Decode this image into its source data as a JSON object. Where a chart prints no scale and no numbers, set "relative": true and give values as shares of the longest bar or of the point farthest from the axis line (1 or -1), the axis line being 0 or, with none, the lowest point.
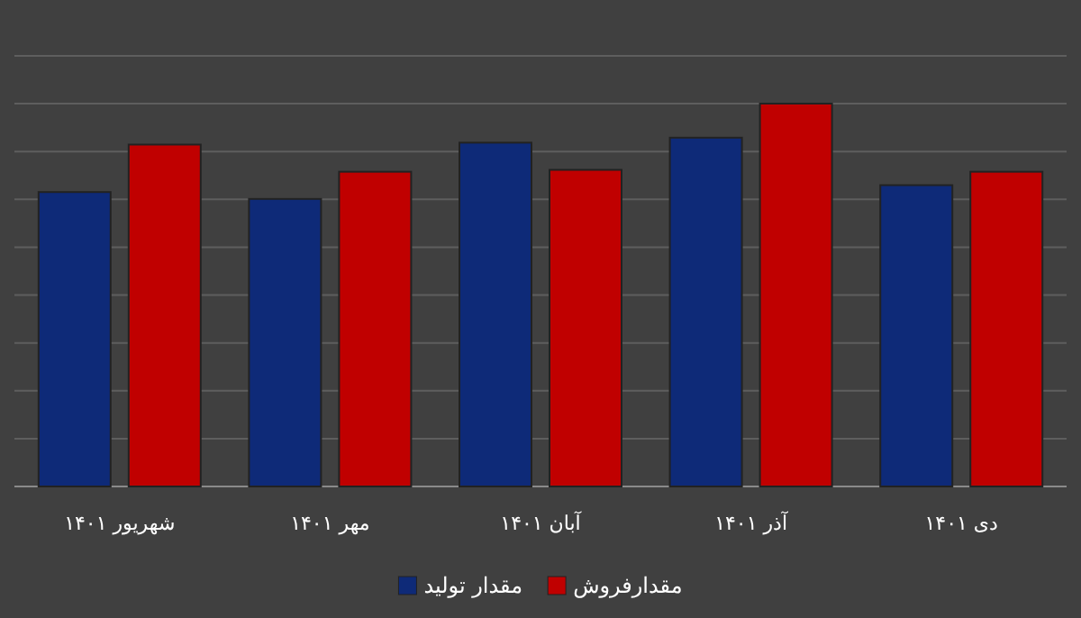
{
  "chart_data": {
    "type": "bar",
    "relative": true,
    "grid": "y",
    "legend": "bottom",
    "categories": [
      "شهریور ۱۴۰۱",
      "مهر ۱۴۰۱",
      "آبان ۱۴۰۱",
      "آذر ۱۴۰۱",
      "دی ۱۴۰۱"
    ],
    "series": [
      {
        "name": "مقدار تولید",
        "color": "#0e2a78",
        "values": [
          0.769,
          0.751,
          0.898,
          0.911,
          0.787
        ]
      },
      {
        "name": "مقدارفروش",
        "color": "#c00000",
        "values": [
          0.893,
          0.822,
          0.827,
          1,
          0.822
        ]
      }
    ]
  }
}
